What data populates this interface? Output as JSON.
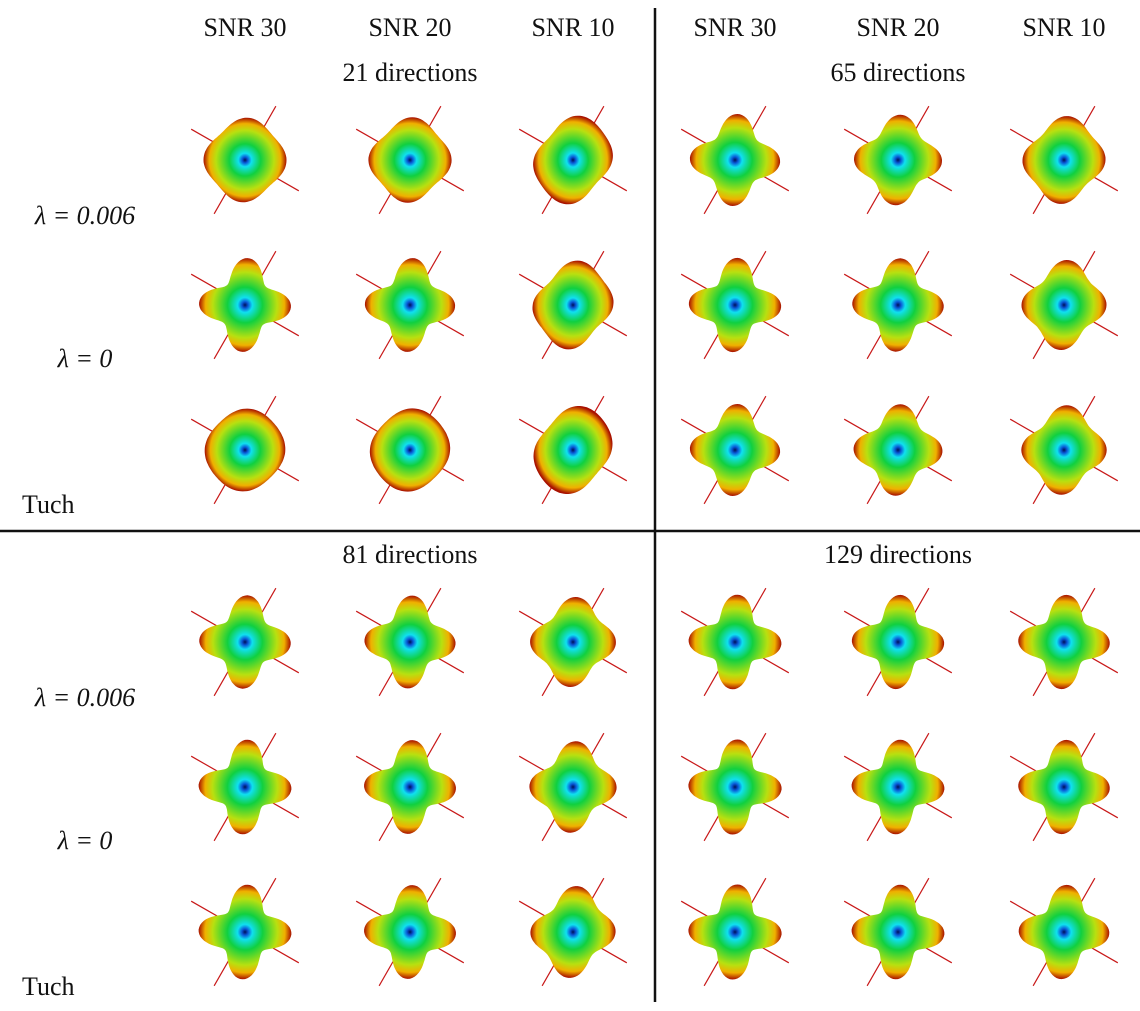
{
  "column_headers": [
    "SNR 30",
    "SNR 20",
    "SNR 10",
    "SNR 30",
    "SNR 20",
    "SNR 10"
  ],
  "halves": [
    {
      "panels": [
        {
          "title": "21 directions"
        },
        {
          "title": "65 directions"
        }
      ],
      "row_labels": [
        "λ = 0.006",
        "λ = 0",
        "Tuch"
      ]
    },
    {
      "panels": [
        {
          "title": "81 directions"
        },
        {
          "title": "129 directions"
        }
      ],
      "row_labels": [
        "λ = 0.006",
        "λ = 0",
        "Tuch"
      ]
    }
  ]
}
